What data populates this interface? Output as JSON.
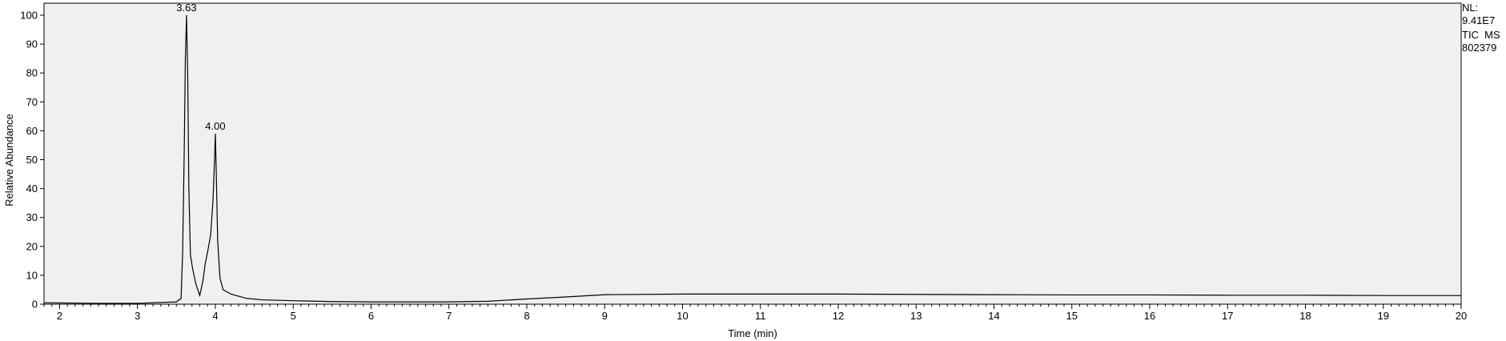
{
  "info": {
    "nl_label": "NL:",
    "nl_value": "9.41E7",
    "trace": "TIC  MS",
    "sample": "802379"
  },
  "chart_data": {
    "type": "line",
    "title": "",
    "xlabel": "Time (min)",
    "ylabel": "Relative Abundance",
    "xlim": [
      1.8,
      20
    ],
    "ylim": [
      0,
      100
    ],
    "x_ticks": [
      2,
      3,
      4,
      5,
      6,
      7,
      8,
      9,
      10,
      11,
      12,
      13,
      14,
      15,
      16,
      17,
      18,
      19,
      20
    ],
    "y_ticks": [
      0,
      10,
      20,
      30,
      40,
      50,
      60,
      70,
      80,
      90,
      100
    ],
    "background_color": "#f0f0f0",
    "line_color": "#000000",
    "peaks": [
      {
        "label": "3.63",
        "x": 3.63,
        "y": 100
      },
      {
        "label": "4.00",
        "x": 4.0,
        "y": 59
      }
    ],
    "series": [
      {
        "x": [
          1.8,
          2.5,
          3.0,
          3.5,
          3.56,
          3.58,
          3.6,
          3.615,
          3.63,
          3.645,
          3.66,
          3.68,
          3.71,
          3.75,
          3.8,
          3.84,
          3.87,
          3.9,
          3.94,
          3.97,
          3.99,
          4.0,
          4.01,
          4.03,
          4.06,
          4.1,
          4.2,
          4.4,
          4.6,
          5.0,
          5.5,
          6.0,
          6.5,
          7.0,
          7.5,
          8.0,
          8.5,
          9.0,
          10.0,
          11.0,
          12.0,
          13.0,
          14.0,
          15.0,
          16.0,
          17.0,
          18.0,
          19.0,
          20.0
        ],
        "y": [
          0.5,
          0.3,
          0.3,
          0.8,
          2,
          18,
          52,
          85,
          100,
          80,
          40,
          17,
          12,
          7,
          3,
          8,
          14,
          18,
          24,
          36,
          50,
          59,
          48,
          22,
          9,
          5,
          3.5,
          2,
          1.5,
          1.2,
          0.9,
          0.8,
          0.8,
          0.8,
          1.0,
          1.8,
          2.5,
          3.3,
          3.5,
          3.5,
          3.5,
          3.4,
          3.3,
          3.2,
          3.2,
          3.1,
          3.1,
          3.0,
          3.0
        ]
      }
    ]
  }
}
